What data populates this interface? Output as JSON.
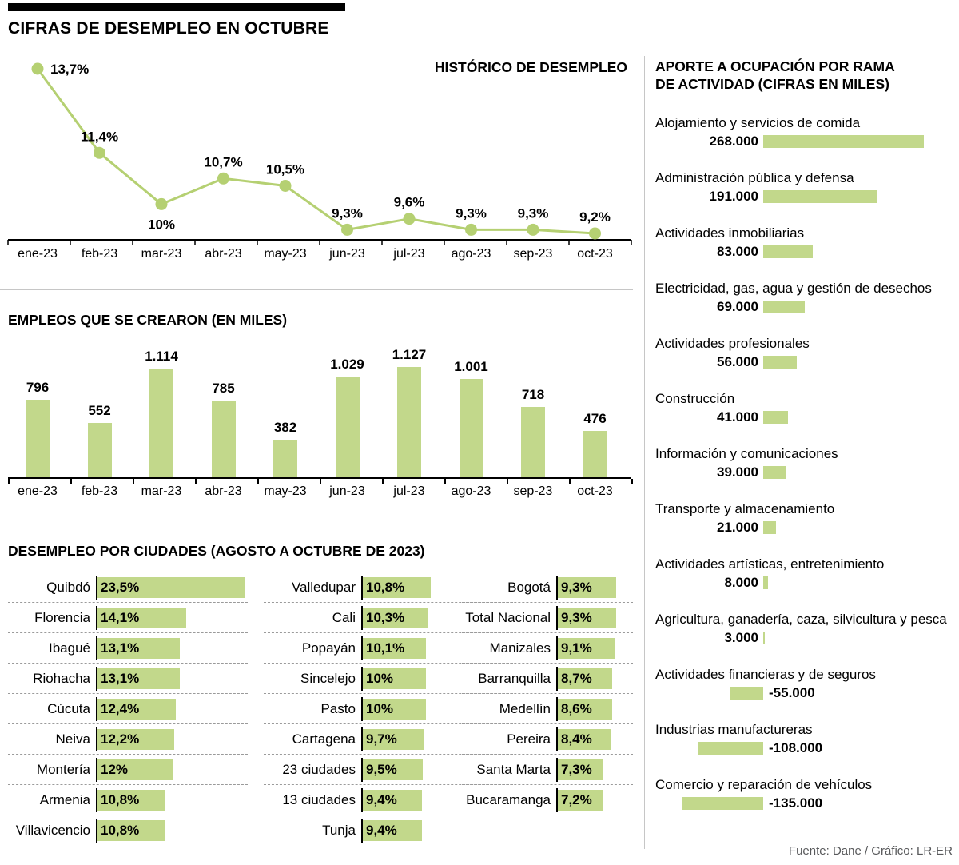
{
  "header": {
    "title": "CIFRAS DE DESEMPLEO EN OCTUBRE"
  },
  "colors": {
    "bar_green": "#c2d88b",
    "line_green": "#b5d072",
    "axis_black": "#000000",
    "divider_gray": "#c6c6c6",
    "muted_text": "#58595b"
  },
  "chart_data": [
    {
      "type": "line",
      "title": "HISTÓRICO DE DESEMPLEO",
      "categories": [
        "ene-23",
        "feb-23",
        "mar-23",
        "abr-23",
        "may-23",
        "jun-23",
        "jul-23",
        "ago-23",
        "sep-23",
        "oct-23"
      ],
      "values": [
        13.7,
        11.4,
        10,
        10.7,
        10.5,
        9.3,
        9.6,
        9.3,
        9.3,
        9.2
      ],
      "labels": [
        "13,7%",
        "11,4%",
        "10%",
        "10,7%",
        "10,5%",
        "9,3%",
        "9,6%",
        "9,3%",
        "9,3%",
        "9,2%"
      ],
      "unit": "%",
      "ylim": [
        9.2,
        13.7
      ],
      "legend": "none",
      "grid": false
    },
    {
      "type": "bar",
      "title": "EMPLEOS QUE SE CREARON (EN MILES)",
      "categories": [
        "ene-23",
        "feb-23",
        "mar-23",
        "abr-23",
        "may-23",
        "jun-23",
        "jul-23",
        "ago-23",
        "sep-23",
        "oct-23"
      ],
      "values": [
        796,
        552,
        1114,
        785,
        382,
        1029,
        1127,
        1001,
        718,
        476
      ],
      "labels": [
        "796",
        "552",
        "1.114",
        "785",
        "382",
        "1.029",
        "1.127",
        "1.001",
        "718",
        "476"
      ],
      "ylim": [
        0,
        1200
      ],
      "legend": "none",
      "grid": false
    },
    {
      "type": "bar",
      "orientation": "horizontal",
      "title": "DESEMPLEO POR CIUDADES (AGOSTO A OCTUBRE DE 2023)",
      "unit": "%",
      "columns": [
        {
          "rows": [
            {
              "label": "Quibdó",
              "value": 23.5,
              "text": "23,5%"
            },
            {
              "label": "Florencia",
              "value": 14.1,
              "text": "14,1%"
            },
            {
              "label": "Ibagué",
              "value": 13.1,
              "text": "13,1%"
            },
            {
              "label": "Riohacha",
              "value": 13.1,
              "text": "13,1%"
            },
            {
              "label": "Cúcuta",
              "value": 12.4,
              "text": "12,4%"
            },
            {
              "label": "Neiva",
              "value": 12.2,
              "text": "12,2%"
            },
            {
              "label": "Montería",
              "value": 12,
              "text": "12%"
            },
            {
              "label": "Armenia",
              "value": 10.8,
              "text": "10,8%"
            },
            {
              "label": "Villavicencio",
              "value": 10.8,
              "text": "10,8%"
            }
          ]
        },
        {
          "rows": [
            {
              "label": "Valledupar",
              "value": 10.8,
              "text": "10,8%"
            },
            {
              "label": "Cali",
              "value": 10.3,
              "text": "10,3%"
            },
            {
              "label": "Popayán",
              "value": 10.1,
              "text": "10,1%"
            },
            {
              "label": "Sincelejo",
              "value": 10,
              "text": "10%"
            },
            {
              "label": "Pasto",
              "value": 10,
              "text": "10%"
            },
            {
              "label": "Cartagena",
              "value": 9.7,
              "text": "9,7%"
            },
            {
              "label": "23 ciudades",
              "value": 9.5,
              "text": "9,5%"
            },
            {
              "label": "13 ciudades",
              "value": 9.4,
              "text": "9,4%"
            },
            {
              "label": "Tunja",
              "value": 9.4,
              "text": "9,4%"
            }
          ]
        },
        {
          "rows": [
            {
              "label": "Bogotá",
              "value": 9.3,
              "text": "9,3%"
            },
            {
              "label": "Total Nacional",
              "value": 9.3,
              "text": "9,3%"
            },
            {
              "label": "Manizales",
              "value": 9.1,
              "text": "9,1%"
            },
            {
              "label": "Barranquilla",
              "value": 8.7,
              "text": "8,7%"
            },
            {
              "label": "Medellín",
              "value": 8.6,
              "text": "8,6%"
            },
            {
              "label": "Pereira",
              "value": 8.4,
              "text": "8,4%"
            },
            {
              "label": "Santa Marta",
              "value": 7.3,
              "text": "7,3%"
            },
            {
              "label": "Bucaramanga",
              "value": 7.2,
              "text": "7,2%"
            }
          ]
        }
      ]
    },
    {
      "type": "bar",
      "orientation": "diverging-horizontal",
      "title": "APORTE A OCUPACIÓN POR RAMA DE ACTIVIDAD (CIFRAS EN MILES)",
      "title_lines": [
        "APORTE A OCUPACIÓN POR RAMA",
        "DE ACTIVIDAD (CIFRAS EN MILES)"
      ],
      "items": [
        {
          "label": "Alojamiento y servicios de comida",
          "value": 268000,
          "text": "268.000"
        },
        {
          "label": "Administración pública y defensa",
          "value": 191000,
          "text": "191.000"
        },
        {
          "label": "Actividades inmobiliarias",
          "value": 83000,
          "text": "83.000"
        },
        {
          "label": "Electricidad, gas, agua y gestión de desechos",
          "value": 69000,
          "text": "69.000"
        },
        {
          "label": "Actividades profesionales",
          "value": 56000,
          "text": "56.000"
        },
        {
          "label": "Construcción",
          "value": 41000,
          "text": "41.000"
        },
        {
          "label": "Información y comunicaciones",
          "value": 39000,
          "text": "39.000"
        },
        {
          "label": "Transporte y almacenamiento",
          "value": 21000,
          "text": "21.000"
        },
        {
          "label": "Actividades artísticas, entretenimiento",
          "value": 8000,
          "text": "8.000"
        },
        {
          "label": "Agricultura, ganadería, caza, silvicultura y pesca",
          "value": 3000,
          "text": "3.000"
        },
        {
          "label": "Actividades financieras y de seguros",
          "value": -55000,
          "text": "-55.000"
        },
        {
          "label": "Industrias manufactureras",
          "value": -108000,
          "text": "-108.000"
        },
        {
          "label": "Comercio y reparación de vehículos",
          "value": -135000,
          "text": "-135.000"
        }
      ]
    }
  ],
  "footer": {
    "source": "Fuente: Dane / Gráfico: LR-ER"
  }
}
